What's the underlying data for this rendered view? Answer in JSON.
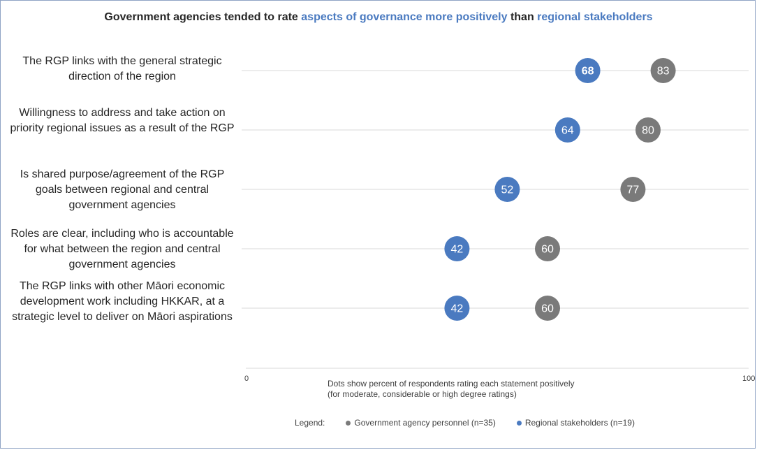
{
  "chart_data": {
    "type": "scatter",
    "title_parts": {
      "prefix": "Government agencies tended to rate ",
      "highlight1": "aspects of governance more positively",
      "middle": " than ",
      "highlight2": "regional stakeholders"
    },
    "categories": [
      "The RGP links with the general strategic direction of the region",
      "Willingness to address and take action on priority regional issues as a result of the RGP",
      "Is shared purpose/agreement of the RGP goals between regional and central government agencies",
      "Roles are clear, including who is accountable for what between the region and central government agencies",
      "The RGP links with other Māori economic development work including HKKAR, at a strategic level to deliver on Māori aspirations"
    ],
    "series": [
      {
        "name": "Government agency personnel (n=35)",
        "color": "#7a7a7a",
        "values": [
          83,
          80,
          77,
          60,
          60
        ]
      },
      {
        "name": "Regional stakeholders (n=19)",
        "color": "#4a7ac0",
        "values": [
          68,
          64,
          52,
          42,
          42
        ]
      }
    ],
    "xlim": [
      0,
      100
    ],
    "x_ticks": [
      "0",
      "100"
    ],
    "xlabel_line1": "Dots show percent of respondents rating each statement positively",
    "xlabel_line2": "(for moderate, considerable or high degree ratings)",
    "legend_title": "Legend:",
    "legend_position": "bottom",
    "grid": "horizontal",
    "title_colors": {
      "text": "#262626",
      "highlight": "#4a7ac0"
    }
  }
}
